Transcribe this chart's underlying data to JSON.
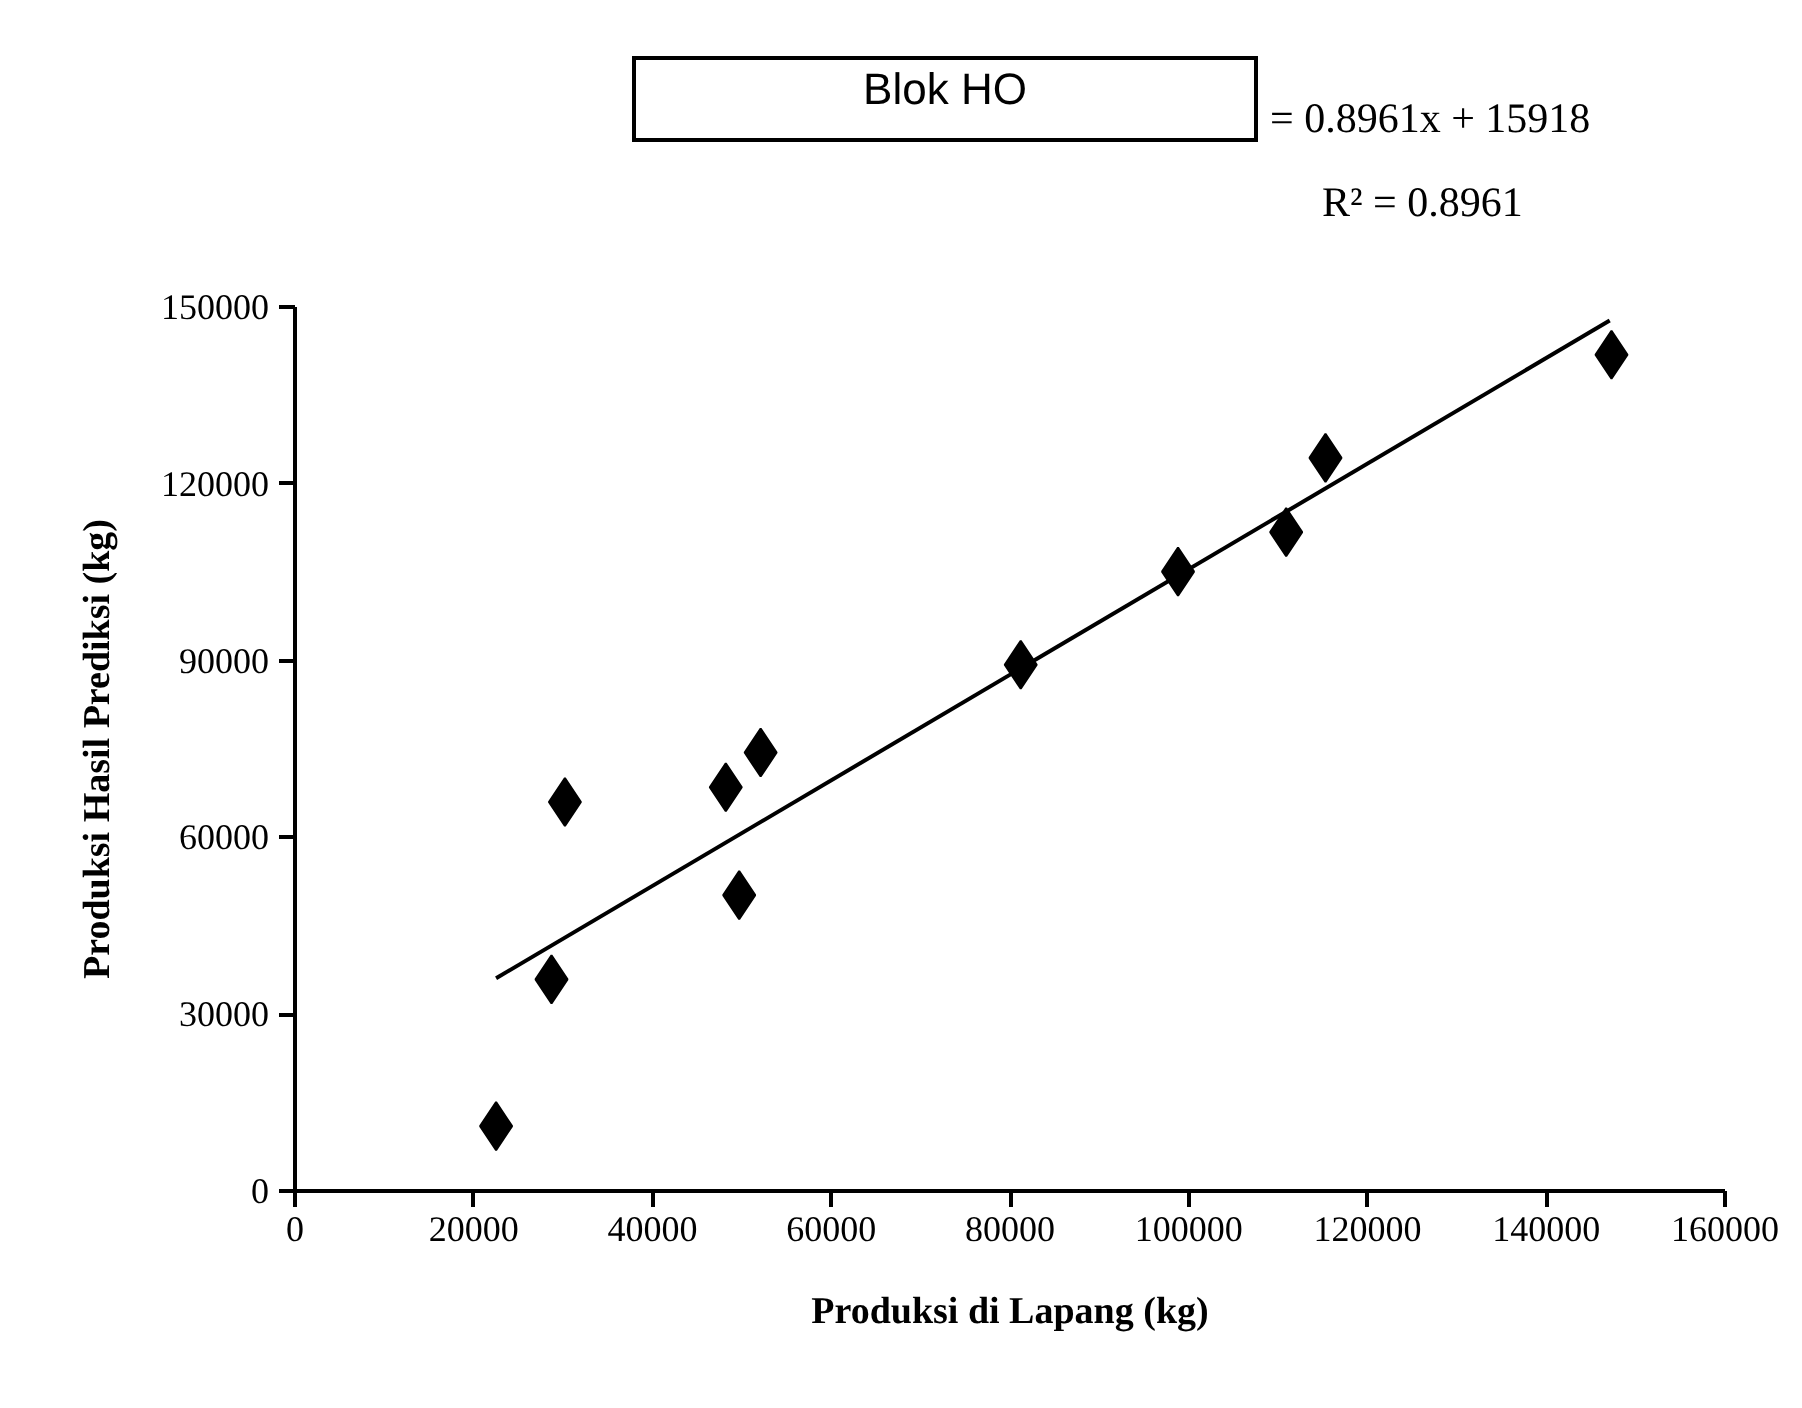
{
  "chart_data": {
    "type": "scatter",
    "title": "Blok HO",
    "xlabel": "Produksi di Lapang (kg)",
    "ylabel": "Produksi Hasil Prediksi (kg)",
    "annotations": [
      "= 0.8961x + 15918",
      "R² = 0.8961"
    ],
    "xlim": [
      0,
      160000
    ],
    "xticks": [
      0,
      20000,
      40000,
      60000,
      80000,
      100000,
      120000,
      140000,
      160000
    ],
    "ylim": [
      0,
      150000
    ],
    "yticks": [
      0,
      30000,
      60000,
      90000,
      120000,
      150000
    ],
    "grid": false,
    "marker": "diamond",
    "series": [
      {
        "color": "#000000",
        "x": [
          22500,
          28700,
          30200,
          48200,
          49700,
          52100,
          81200,
          98800,
          110900,
          115300,
          147300
        ],
        "values": [
          11000,
          35900,
          66000,
          68500,
          50200,
          74400,
          89300,
          105100,
          111800,
          124400,
          141900
        ]
      },
      {
        "type": "line",
        "color": "#000000",
        "line_style": "solid",
        "marker": "none",
        "x": [
          22500,
          147100
        ],
        "values": [
          36100,
          147700
        ]
      }
    ]
  }
}
